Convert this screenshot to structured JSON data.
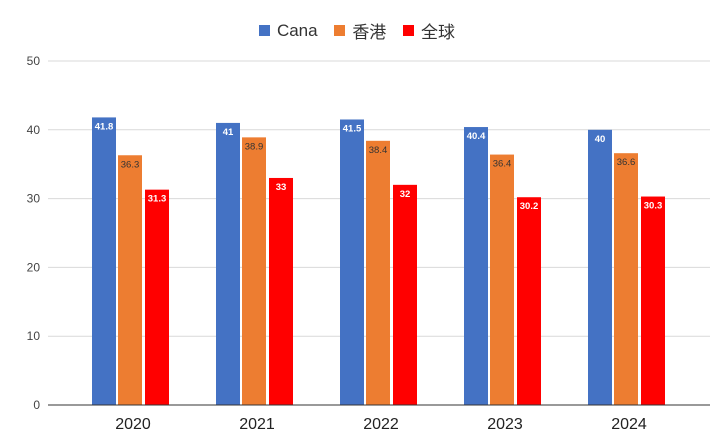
{
  "chart_data": {
    "type": "bar",
    "title": "",
    "xlabel": "",
    "ylabel": "",
    "categories": [
      "2020",
      "2021",
      "2022",
      "2023",
      "2024"
    ],
    "series": [
      {
        "name": "Cana",
        "color": "#4472c4",
        "label_color": "#ffffff",
        "values": [
          41.8,
          41,
          41.5,
          40.4,
          40
        ],
        "labels": [
          "41.8",
          "41",
          "41.5",
          "40.4",
          "40"
        ]
      },
      {
        "name": "香港",
        "color": "#ed7d31",
        "label_color": "#333333",
        "values": [
          36.3,
          38.9,
          38.4,
          36.4,
          36.6
        ],
        "labels": [
          "36.3",
          "38.9",
          "38.4",
          "36.4",
          "36.6"
        ]
      },
      {
        "name": "全球",
        "color": "#ff0000",
        "label_color": "#ffffff",
        "values": [
          31.3,
          33,
          32,
          30.2,
          30.3
        ],
        "labels": [
          "31.3",
          "33",
          "32",
          "30.2",
          "30.3"
        ]
      }
    ],
    "ylim": [
      0,
      50
    ],
    "yticks": [
      0,
      10,
      20,
      30,
      40,
      50
    ],
    "ytick_labels": [
      "0",
      "10",
      "20",
      "30",
      "40",
      "50"
    ],
    "grid": true,
    "legend_position": "top-center"
  }
}
